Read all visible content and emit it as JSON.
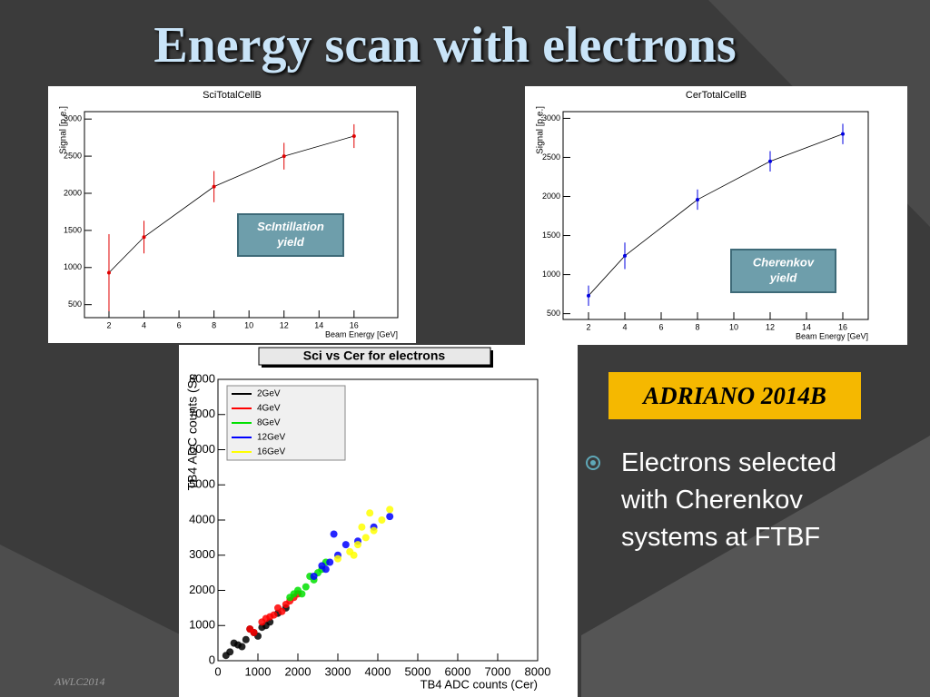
{
  "slide": {
    "title": "Energy scan with electrons",
    "tag": "ADRIANO 2014B",
    "bullet": "Electrons selected with Cherenkov systems at FTBF",
    "footer": "AWLC2014"
  },
  "chart_data": [
    {
      "type": "line",
      "title": "SciTotalCellB",
      "x_label": "Beam Energy [GeV]",
      "y_label": "Signal [p.e.]",
      "annotation": "ScIntillation yield",
      "x": [
        2,
        4,
        8,
        12,
        16
      ],
      "values": [
        930,
        1410,
        2090,
        2500,
        2770
      ],
      "errors": [
        520,
        220,
        210,
        180,
        160
      ],
      "color": "#e00000",
      "xlim": [
        0.6,
        18.5
      ],
      "ylim": [
        325,
        3100
      ],
      "xticks": [
        2,
        4,
        6,
        8,
        10,
        12,
        14,
        16
      ],
      "yticks": [
        500,
        1000,
        1500,
        2000,
        2500,
        3000
      ]
    },
    {
      "type": "line",
      "title": "CerTotalCellB",
      "x_label": "Beam Energy [GeV]",
      "y_label": "Signal [p.e.]",
      "annotation": "Cherenkov yield",
      "x": [
        2,
        4,
        8,
        12,
        16
      ],
      "values": [
        730,
        1240,
        1960,
        2450,
        2800
      ],
      "errors": [
        130,
        170,
        130,
        130,
        130
      ],
      "color": "#0000e0",
      "xlim": [
        0.6,
        17.4
      ],
      "ylim": [
        426,
        3086
      ],
      "xticks": [
        2,
        4,
        6,
        8,
        10,
        12,
        14,
        16
      ],
      "yticks": [
        500,
        1000,
        1500,
        2000,
        2500,
        3000
      ]
    },
    {
      "type": "scatter",
      "title": "Sci vs Cer for electrons",
      "x_label": "TB4 ADC counts (Cer)",
      "y_label": "TB4 ADC counts (Sc",
      "xlim": [
        0,
        8000
      ],
      "ylim": [
        0,
        8000
      ],
      "xticks": [
        0,
        1000,
        2000,
        3000,
        4000,
        5000,
        6000,
        7000,
        8000
      ],
      "yticks": [
        0,
        1000,
        2000,
        3000,
        4000,
        5000,
        6000,
        7000,
        8000
      ],
      "series": [
        {
          "name": "2GeV",
          "color": "#000000",
          "x": [
            300,
            500,
            700,
            900,
            1100,
            1300,
            1500,
            1700,
            800,
            1200,
            400,
            1000,
            200,
            600
          ],
          "y": [
            250,
            450,
            600,
            800,
            950,
            1100,
            1350,
            1500,
            900,
            1000,
            500,
            700,
            150,
            400
          ]
        },
        {
          "name": "4GeV",
          "color": "#ff0000",
          "x": [
            800,
            1100,
            1300,
            1500,
            1700,
            1900,
            1600,
            1200,
            1400,
            2000,
            900,
            1800
          ],
          "y": [
            900,
            1100,
            1250,
            1500,
            1600,
            1800,
            1400,
            1200,
            1300,
            1900,
            800,
            1700
          ]
        },
        {
          "name": "8GeV",
          "color": "#00e000",
          "x": [
            1800,
            2000,
            2200,
            2400,
            2600,
            2300,
            2100,
            1900,
            2500,
            2700
          ],
          "y": [
            1800,
            2000,
            2100,
            2300,
            2600,
            2400,
            1900,
            1900,
            2500,
            2800
          ]
        },
        {
          "name": "12GeV",
          "color": "#0000ff",
          "x": [
            2400,
            2600,
            2800,
            3000,
            3200,
            2700,
            3500,
            3900,
            4300,
            2900
          ],
          "y": [
            2400,
            2700,
            2800,
            3000,
            3300,
            2600,
            3400,
            3800,
            4100,
            3600
          ]
        },
        {
          "name": "16GeV",
          "color": "#ffff00",
          "x": [
            3000,
            3300,
            3500,
            3700,
            3900,
            4100,
            3400,
            3800,
            4300,
            3600
          ],
          "y": [
            2900,
            3100,
            3300,
            3500,
            3700,
            4000,
            3000,
            4200,
            4300,
            3800
          ]
        }
      ]
    }
  ]
}
